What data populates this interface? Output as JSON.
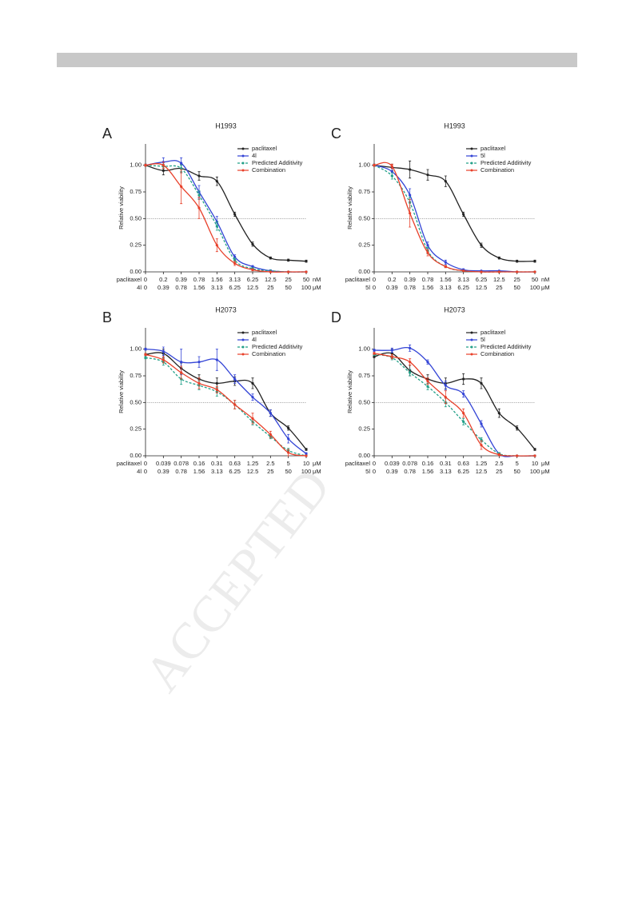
{
  "watermark": "ACCEPTED",
  "chart_data": [
    {
      "type": "line",
      "panel": "A",
      "title": "H1993",
      "ylabel": "Relative viability",
      "categories": [
        "0",
        "0.2",
        "0.39",
        "0.78",
        "1.56",
        "3.13",
        "6.25",
        "12.5",
        "25",
        "50"
      ],
      "categories2": [
        "0",
        "0.39",
        "0.78",
        "1.56",
        "3.13",
        "6.25",
        "12.5",
        "25",
        "50",
        "100"
      ],
      "row_labels": [
        "paclitaxel",
        "4l"
      ],
      "units": [
        "nM",
        "μM"
      ],
      "ylim": [
        0,
        1.2
      ],
      "yticks": [
        {
          "value": 0,
          "label": "0.00"
        },
        {
          "value": 0.25,
          "label": "0.25"
        },
        {
          "value": 0.5,
          "label": "0.50"
        },
        {
          "value": 0.75,
          "label": "0.75"
        },
        {
          "value": 1,
          "label": "1.00"
        }
      ],
      "reference_line": 0.5,
      "legend": "upper right",
      "series": [
        {
          "name": "paclitaxel",
          "color": "#222222",
          "values": [
            1.0,
            0.95,
            0.97,
            0.9,
            0.85,
            0.54,
            0.26,
            0.13,
            0.11,
            0.1
          ],
          "errors": [
            0.01,
            0.04,
            0.04,
            0.04,
            0.04,
            0.02,
            0.02,
            0.01,
            0.01,
            0.01
          ]
        },
        {
          "name": "4l",
          "color": "#3344d6",
          "values": [
            1.0,
            1.03,
            1.02,
            0.75,
            0.47,
            0.14,
            0.05,
            0.01,
            0,
            0
          ],
          "errors": [
            0.01,
            0.04,
            0.05,
            0.06,
            0.05,
            0.02,
            0.01,
            0.01,
            0,
            0
          ]
        },
        {
          "name": "Predicted Additivity",
          "color": "#22a088",
          "dashed": true,
          "values": [
            1.0,
            0.99,
            0.97,
            0.72,
            0.43,
            0.11,
            0.03,
            0.01,
            0,
            0
          ],
          "errors": [
            0.01,
            0.02,
            0.03,
            0.04,
            0.04,
            0.02,
            0.01,
            0,
            0,
            0
          ]
        },
        {
          "name": "Combination",
          "color": "#e8402a",
          "values": [
            1.0,
            1.0,
            0.8,
            0.6,
            0.25,
            0.08,
            0.02,
            0,
            0,
            0
          ],
          "errors": [
            0.01,
            0.03,
            0.16,
            0.1,
            0.06,
            0.02,
            0.01,
            0,
            0,
            0
          ]
        }
      ]
    },
    {
      "type": "line",
      "panel": "B",
      "title": "H2073",
      "ylabel": "Relative viability",
      "categories": [
        "0",
        "0.039",
        "0.078",
        "0.16",
        "0.31",
        "0.63",
        "1.25",
        "2.5",
        "5",
        "10"
      ],
      "categories2": [
        "0",
        "0.39",
        "0.78",
        "1.56",
        "3.13",
        "6.25",
        "12.5",
        "25",
        "50",
        "100"
      ],
      "row_labels": [
        "paclitaxel",
        "4l"
      ],
      "units": [
        "μM",
        "μM"
      ],
      "ylim": [
        0,
        1.2
      ],
      "yticks": [
        {
          "value": 0,
          "label": "0.00"
        },
        {
          "value": 0.25,
          "label": "0.25"
        },
        {
          "value": 0.5,
          "label": "0.50"
        },
        {
          "value": 0.75,
          "label": "0.75"
        },
        {
          "value": 1,
          "label": "1.00"
        }
      ],
      "reference_line": 0.5,
      "legend": "upper right",
      "series": [
        {
          "name": "paclitaxel",
          "color": "#222222",
          "values": [
            0.95,
            0.96,
            0.82,
            0.72,
            0.68,
            0.7,
            0.68,
            0.4,
            0.26,
            0.06
          ],
          "errors": [
            0.01,
            0.04,
            0.05,
            0.04,
            0.05,
            0.04,
            0.05,
            0.03,
            0.02,
            0.01
          ]
        },
        {
          "name": "4l",
          "color": "#3344d6",
          "values": [
            1.0,
            0.98,
            0.88,
            0.88,
            0.9,
            0.72,
            0.55,
            0.4,
            0.16,
            0.02
          ],
          "errors": [
            0.01,
            0.04,
            0.12,
            0.05,
            0.1,
            0.04,
            0.03,
            0.03,
            0.04,
            0.01
          ]
        },
        {
          "name": "Predicted Additivity",
          "color": "#22a088",
          "dashed": true,
          "values": [
            0.92,
            0.88,
            0.72,
            0.66,
            0.6,
            0.48,
            0.32,
            0.18,
            0.05,
            0
          ],
          "errors": [
            0.01,
            0.03,
            0.05,
            0.04,
            0.04,
            0.04,
            0.03,
            0.02,
            0.02,
            0
          ]
        },
        {
          "name": "Combination",
          "color": "#e8402a",
          "values": [
            0.95,
            0.9,
            0.78,
            0.68,
            0.62,
            0.48,
            0.35,
            0.2,
            0.03,
            0
          ],
          "errors": [
            0.01,
            0.03,
            0.06,
            0.05,
            0.03,
            0.04,
            0.05,
            0.03,
            0.03,
            0
          ]
        }
      ]
    },
    {
      "type": "line",
      "panel": "C",
      "title": "H1993",
      "ylabel": "Relative viability",
      "categories": [
        "0",
        "0.2",
        "0.39",
        "0.78",
        "1.56",
        "3.13",
        "6.25",
        "12.5",
        "25",
        "50"
      ],
      "categories2": [
        "0",
        "0.39",
        "0.78",
        "1.56",
        "3.13",
        "6.25",
        "12.5",
        "25",
        "50",
        "100"
      ],
      "row_labels": [
        "paclitaxel",
        "5l"
      ],
      "units": [
        "nM",
        "μM"
      ],
      "ylim": [
        0,
        1.2
      ],
      "yticks": [
        {
          "value": 0,
          "label": "0.00"
        },
        {
          "value": 0.25,
          "label": "0.25"
        },
        {
          "value": 0.5,
          "label": "0.50"
        },
        {
          "value": 0.75,
          "label": "0.75"
        },
        {
          "value": 1,
          "label": "1.00"
        }
      ],
      "reference_line": 0.5,
      "legend": "upper right",
      "series": [
        {
          "name": "paclitaxel",
          "color": "#222222",
          "values": [
            1.0,
            0.98,
            0.96,
            0.91,
            0.85,
            0.54,
            0.25,
            0.13,
            0.1,
            0.1
          ],
          "errors": [
            0.01,
            0.03,
            0.08,
            0.05,
            0.05,
            0.02,
            0.02,
            0.01,
            0.01,
            0.01
          ]
        },
        {
          "name": "5l",
          "color": "#3344d6",
          "values": [
            1.0,
            0.94,
            0.72,
            0.25,
            0.09,
            0.02,
            0.01,
            0.01,
            0,
            0
          ],
          "errors": [
            0.01,
            0.04,
            0.06,
            0.03,
            0.02,
            0.01,
            0,
            0,
            0,
            0
          ]
        },
        {
          "name": "Predicted Additivity",
          "color": "#22a088",
          "dashed": true,
          "values": [
            1.0,
            0.9,
            0.65,
            0.2,
            0.05,
            0.01,
            0,
            0,
            0,
            0
          ],
          "errors": [
            0.01,
            0.03,
            0.05,
            0.03,
            0.01,
            0,
            0,
            0,
            0,
            0
          ]
        },
        {
          "name": "Combination",
          "color": "#e8402a",
          "values": [
            1.0,
            0.99,
            0.55,
            0.18,
            0.05,
            0.01,
            0,
            0,
            0,
            0
          ],
          "errors": [
            0.01,
            0.02,
            0.13,
            0.03,
            0.01,
            0,
            0,
            0,
            0,
            0
          ]
        }
      ]
    },
    {
      "type": "line",
      "panel": "D",
      "title": "H2073",
      "ylabel": "Relative viability",
      "categories": [
        "0",
        "0.039",
        "0.078",
        "0.16",
        "0.31",
        "0.63",
        "1.25",
        "2.5",
        "5",
        "10"
      ],
      "categories2": [
        "0",
        "0.39",
        "0.78",
        "1.56",
        "3.13",
        "6.25",
        "12.5",
        "25",
        "50",
        "100"
      ],
      "row_labels": [
        "paclitaxel",
        "5l"
      ],
      "units": [
        "μM",
        "μM"
      ],
      "ylim": [
        0,
        1.2
      ],
      "yticks": [
        {
          "value": 0,
          "label": "0.00"
        },
        {
          "value": 0.25,
          "label": "0.25"
        },
        {
          "value": 0.5,
          "label": "0.50"
        },
        {
          "value": 0.75,
          "label": "0.75"
        },
        {
          "value": 1,
          "label": "1.00"
        }
      ],
      "reference_line": 0.5,
      "legend": "upper right",
      "series": [
        {
          "name": "paclitaxel",
          "color": "#222222",
          "values": [
            0.93,
            0.96,
            0.8,
            0.72,
            0.68,
            0.72,
            0.68,
            0.4,
            0.26,
            0.06
          ],
          "errors": [
            0.01,
            0.04,
            0.05,
            0.04,
            0.05,
            0.05,
            0.05,
            0.04,
            0.02,
            0.01
          ]
        },
        {
          "name": "5l",
          "color": "#3344d6",
          "values": [
            0.99,
            0.99,
            1.01,
            0.88,
            0.66,
            0.58,
            0.3,
            0.02,
            0,
            0
          ],
          "errors": [
            0.01,
            0.02,
            0.03,
            0.02,
            0.04,
            0.03,
            0.03,
            0.01,
            0,
            0
          ]
        },
        {
          "name": "Predicted Additivity",
          "color": "#22a088",
          "dashed": true,
          "values": [
            0.95,
            0.92,
            0.78,
            0.65,
            0.5,
            0.32,
            0.15,
            0.02,
            0,
            0
          ],
          "errors": [
            0.01,
            0.02,
            0.03,
            0.03,
            0.04,
            0.03,
            0.02,
            0.01,
            0,
            0
          ]
        },
        {
          "name": "Combination",
          "color": "#e8402a",
          "values": [
            0.96,
            0.93,
            0.88,
            0.7,
            0.55,
            0.4,
            0.1,
            0.01,
            0,
            0
          ],
          "errors": [
            0.01,
            0.02,
            0.03,
            0.03,
            0.06,
            0.04,
            0.04,
            0.01,
            0,
            0
          ]
        }
      ]
    }
  ]
}
